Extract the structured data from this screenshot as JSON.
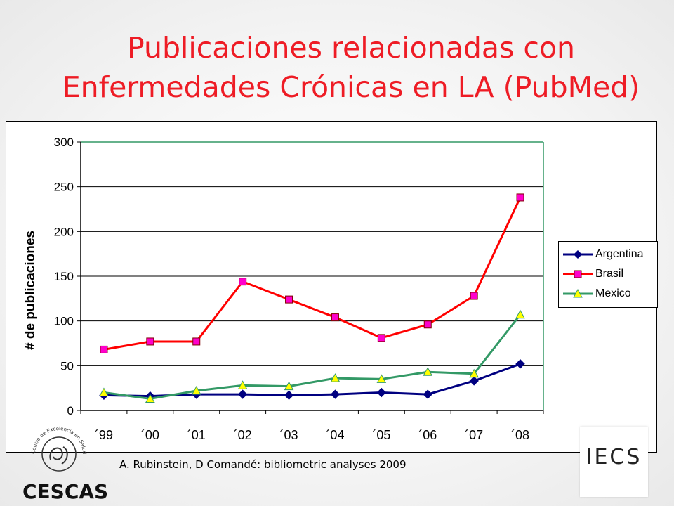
{
  "title_line1": "Publicaciones relacionadas con",
  "title_line2": "Enfermedades Crónicas en LA (PubMed)",
  "source": "A. Rubinstein, D Comandé: bibliometric analyses 2009",
  "logos": {
    "left_text": "CESCAS",
    "left_ring_text": "Centro de Excelencia en Salud Cardiovascular para el Cono Sur",
    "right_text": "IECS"
  },
  "colors": {
    "title": "#ee1c25",
    "argentina": "#000080",
    "brasil": "#ff0000",
    "mexico": "#339966"
  },
  "chart_data": {
    "type": "line",
    "ylabel": "# de publicaciones",
    "xlabel": "",
    "ylim": [
      0,
      300
    ],
    "yticks": [
      0,
      50,
      100,
      150,
      200,
      250,
      300
    ],
    "grid": true,
    "legend_position": "right",
    "categories": [
      "´99",
      "´00",
      "´01",
      "´02",
      "´03",
      "´04",
      "´05",
      "´06",
      "´07",
      "´08"
    ],
    "series": [
      {
        "name": "Argentina",
        "marker": "diamond",
        "values": [
          17,
          16,
          18,
          18,
          17,
          18,
          20,
          18,
          33,
          52
        ]
      },
      {
        "name": "Brasil",
        "marker": "square",
        "values": [
          68,
          77,
          77,
          144,
          124,
          104,
          81,
          96,
          128,
          238
        ]
      },
      {
        "name": "Mexico",
        "marker": "triangle",
        "values": [
          20,
          13,
          22,
          28,
          27,
          36,
          35,
          43,
          41,
          107
        ]
      }
    ]
  }
}
